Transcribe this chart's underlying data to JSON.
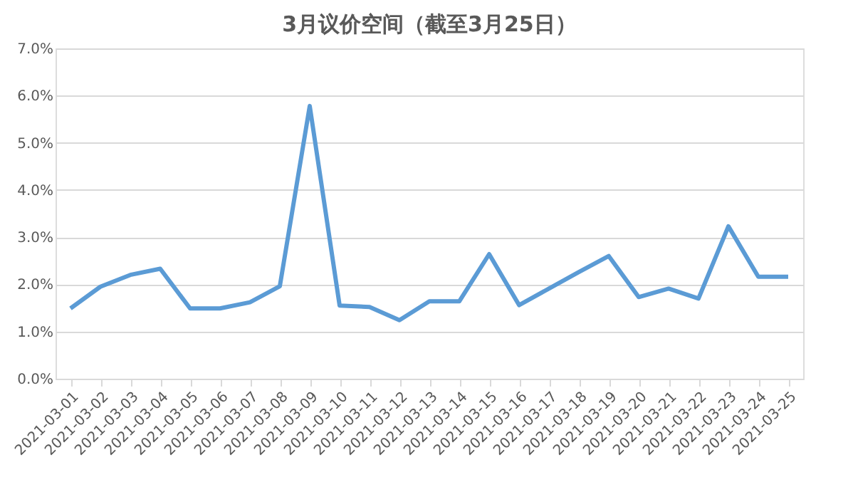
{
  "chart_data": {
    "type": "line",
    "title": "3月议价空间（截至3月25日）",
    "categories": [
      "2021-03-01",
      "2021-03-02",
      "2021-03-03",
      "2021-03-04",
      "2021-03-05",
      "2021-03-06",
      "2021-03-07",
      "2021-03-08",
      "2021-03-09",
      "2021-03-10",
      "2021-03-11",
      "2021-03-12",
      "2021-03-13",
      "2021-03-14",
      "2021-03-15",
      "2021-03-16",
      "2021-03-17",
      "2021-03-18",
      "2021-03-19",
      "2021-03-20",
      "2021-03-21",
      "2021-03-22",
      "2021-03-23",
      "2021-03-24",
      "2021-03-25"
    ],
    "series": [
      {
        "color": "#5b9bd5",
        "values": [
          1.49,
          1.95,
          2.2,
          2.33,
          1.49,
          1.49,
          1.62,
          1.96,
          5.78,
          1.55,
          1.52,
          1.24,
          1.64,
          1.64,
          2.64,
          1.56,
          1.91,
          2.26,
          2.6,
          1.73,
          1.91,
          1.7,
          3.23,
          2.16,
          2.16
        ]
      }
    ],
    "ylim": [
      0,
      7
    ],
    "yticks": [
      {
        "value": 0,
        "label": "0.0%"
      },
      {
        "value": 1,
        "label": "1.0%"
      },
      {
        "value": 2,
        "label": "2.0%"
      },
      {
        "value": 3,
        "label": "3.0%"
      },
      {
        "value": 4,
        "label": "4.0%"
      },
      {
        "value": 5,
        "label": "5.0%"
      },
      {
        "value": 6,
        "label": "6.0%"
      },
      {
        "value": 7,
        "label": "7.0%"
      }
    ],
    "grid": "y",
    "marker": "none",
    "line_style": "solid",
    "legend": false
  }
}
